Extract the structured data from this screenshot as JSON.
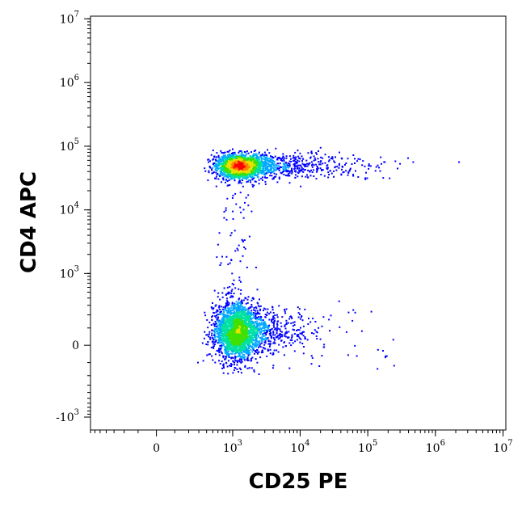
{
  "chart_data": {
    "type": "scatter",
    "style": "density-colored flow cytometry dot plot",
    "xlabel": "CD25 PE",
    "ylabel": "CD4 APC",
    "x_scale": "biexponential",
    "y_scale": "biexponential",
    "x_ticks": [
      {
        "value": 0,
        "base": "0",
        "exp": ""
      },
      {
        "value": 1000,
        "base": "10",
        "exp": "3"
      },
      {
        "value": 10000,
        "base": "10",
        "exp": "4"
      },
      {
        "value": 100000,
        "base": "10",
        "exp": "5"
      },
      {
        "value": 1000000,
        "base": "10",
        "exp": "6"
      },
      {
        "value": 10000000,
        "base": "10",
        "exp": "7"
      }
    ],
    "y_ticks": [
      {
        "value": -1000,
        "base": "-10",
        "exp": "3"
      },
      {
        "value": 0,
        "base": "0",
        "exp": ""
      },
      {
        "value": 1000,
        "base": "10",
        "exp": "3"
      },
      {
        "value": 10000,
        "base": "10",
        "exp": "4"
      },
      {
        "value": 100000,
        "base": "10",
        "exp": "5"
      },
      {
        "value": 1000000,
        "base": "10",
        "exp": "6"
      },
      {
        "value": 10000000,
        "base": "10",
        "exp": "7"
      }
    ],
    "xlim": [
      -700,
      11000000
    ],
    "ylim": [
      -1600,
      11000000
    ],
    "grid": false,
    "populations": [
      {
        "center_x": 1200,
        "center_y": 50000,
        "count": 2400
      },
      {
        "center_x": 1100,
        "center_y": 80,
        "count": 2600
      }
    ],
    "density_colors": [
      "#0000ff",
      "#00a8ff",
      "#00e0a0",
      "#40e000",
      "#e8e000",
      "#ff8000",
      "#ff0000"
    ]
  }
}
